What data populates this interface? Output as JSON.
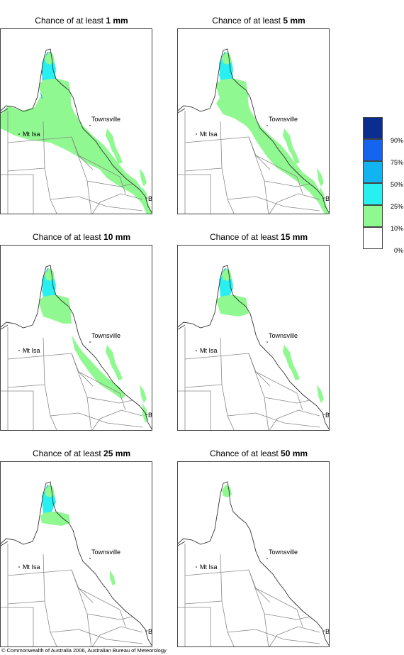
{
  "title_prefix": "Chance of at least",
  "panels": [
    {
      "amount": "1 mm"
    },
    {
      "amount": "5 mm"
    },
    {
      "amount": "10 mm"
    },
    {
      "amount": "15 mm"
    },
    {
      "amount": "25 mm"
    },
    {
      "amount": "50 mm"
    }
  ],
  "towns": {
    "townsville": "Townsville",
    "mt_isa": "Mt Isa",
    "bris": "BRIS"
  },
  "legend": {
    "items": [
      {
        "label": "",
        "color": "#0a2d8f"
      },
      {
        "label": "90%",
        "color": "#1464f0"
      },
      {
        "label": "75%",
        "color": "#10b4f0"
      },
      {
        "label": "50%",
        "color": "#28f0f0"
      },
      {
        "label": "25%",
        "color": "#90f890"
      },
      {
        "label": "10%",
        "color": "#ffffff"
      }
    ],
    "bottom_label": "0%"
  },
  "copyright": "© Commonwealth of Australia 2006, Australian Bureau of Meteorology"
}
